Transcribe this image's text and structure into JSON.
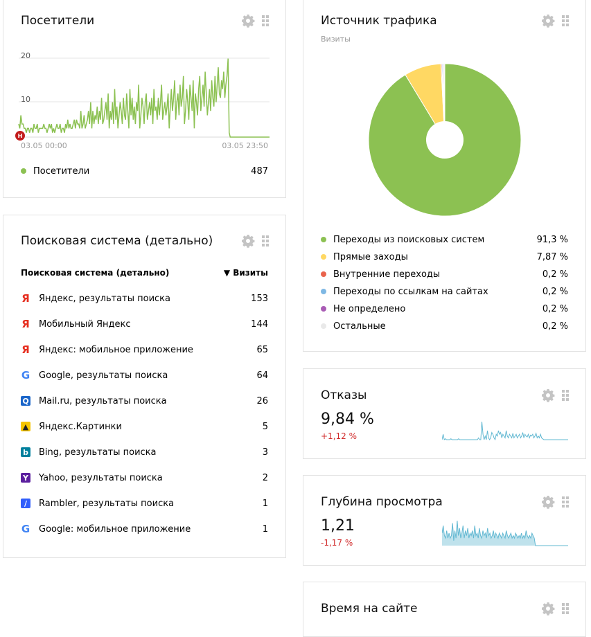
{
  "visitors": {
    "title": "Посетители",
    "y_ticks": [
      "20",
      "10"
    ],
    "x_start": "03.05 00:00",
    "x_end": "03.05 23:50",
    "marker": "Н",
    "legend_label": "Посетители",
    "legend_value": "487",
    "color": "#8cc152",
    "chart_data": {
      "type": "line",
      "ylim": [
        0,
        22
      ],
      "values": [
        3,
        2,
        5,
        3,
        3,
        2,
        2,
        1,
        2,
        2,
        1,
        2,
        2,
        1,
        3,
        2,
        2,
        3,
        1,
        2,
        2,
        2,
        2,
        3,
        2,
        2,
        1,
        2,
        3,
        2,
        3,
        1,
        2,
        1,
        2,
        3,
        2,
        2,
        3,
        1,
        2,
        2,
        1,
        3,
        2,
        4,
        2,
        3,
        2,
        2,
        3,
        4,
        2,
        4,
        3,
        3,
        2,
        6,
        2,
        3,
        5,
        2,
        3,
        4,
        6,
        3,
        8,
        2,
        6,
        3,
        5,
        4,
        7,
        3,
        6,
        4,
        9,
        3,
        4,
        6,
        8,
        4,
        10,
        2,
        6,
        4,
        8,
        3,
        11,
        4,
        7,
        2,
        5,
        8,
        6,
        3,
        9,
        5,
        4,
        10,
        6,
        2,
        11,
        5,
        9,
        4,
        7,
        3,
        8,
        6,
        12,
        2,
        5,
        9,
        7,
        3,
        8,
        10,
        4,
        6,
        8,
        5,
        9,
        3,
        11,
        6,
        7,
        4,
        9,
        5,
        8,
        12,
        4,
        6,
        8,
        5,
        7,
        10,
        2,
        7,
        11,
        6,
        9,
        13,
        4,
        8,
        10,
        5,
        12,
        7,
        9,
        14,
        3,
        6,
        11,
        8,
        4,
        12,
        9,
        6,
        13,
        2,
        10,
        8,
        5,
        11,
        14,
        6,
        9,
        12,
        7,
        15,
        10,
        5,
        8,
        11,
        6,
        13,
        9,
        7,
        14,
        8,
        12,
        16,
        10,
        9,
        13,
        11,
        15,
        9,
        12,
        14,
        18,
        1,
        0,
        0,
        0,
        0,
        0,
        0,
        0,
        0,
        0,
        0,
        0,
        0,
        0,
        0,
        0,
        0,
        0,
        0,
        0,
        0,
        0,
        0,
        0,
        0,
        0,
        0,
        0,
        0,
        0,
        0,
        0,
        0,
        0,
        0,
        0,
        0,
        0
      ]
    }
  },
  "traffic": {
    "title": "Источник трафика",
    "subtitle": "Визиты",
    "items": [
      {
        "label": "Переходы из поисковых систем",
        "value": "91,3 %",
        "color": "#8cc152"
      },
      {
        "label": "Прямые заходы",
        "value": "7,87 %",
        "color": "#ffd863"
      },
      {
        "label": "Внутренние переходы",
        "value": "0,2 %",
        "color": "#e9634c"
      },
      {
        "label": "Переходы по ссылкам на сайтах",
        "value": "0,2 %",
        "color": "#7eb8e4"
      },
      {
        "label": "Не определено",
        "value": "0,2 %",
        "color": "#a95cb5"
      },
      {
        "label": "Остальные",
        "value": "0,2 %",
        "color": "#e9e9e9"
      }
    ],
    "chart_data": {
      "type": "pie",
      "categories": [
        "Переходы из поисковых систем",
        "Прямые заходы",
        "Внутренние переходы",
        "Переходы по ссылкам на сайтах",
        "Не определено",
        "Остальные"
      ],
      "values": [
        91.3,
        7.87,
        0.2,
        0.2,
        0.2,
        0.2
      ]
    }
  },
  "search": {
    "title": "Поисковая система (детально)",
    "col_name": "Поисковая система (детально)",
    "col_visits": "▼ Визиты",
    "rows": [
      {
        "label": "Яндекс, результаты поиска",
        "value": "153",
        "icon": "yandex-icon"
      },
      {
        "label": "Мобильный Яндекс",
        "value": "144",
        "icon": "yandex-icon"
      },
      {
        "label": "Яндекс: мобильное приложение",
        "value": "65",
        "icon": "yandex-icon"
      },
      {
        "label": "Google, результаты поиска",
        "value": "64",
        "icon": "google-icon"
      },
      {
        "label": "Mail.ru, результаты поиска",
        "value": "26",
        "icon": "mailru-icon"
      },
      {
        "label": "Яндекс.Картинки",
        "value": "5",
        "icon": "yandex-images-icon"
      },
      {
        "label": "Bing, результаты поиска",
        "value": "3",
        "icon": "bing-icon"
      },
      {
        "label": "Yahoo, результаты поиска",
        "value": "2",
        "icon": "yahoo-icon"
      },
      {
        "label": "Rambler, результаты поиска",
        "value": "1",
        "icon": "rambler-icon"
      },
      {
        "label": "Google: мобильное приложение",
        "value": "1",
        "icon": "google-icon"
      }
    ]
  },
  "bounces": {
    "title": "Отказы",
    "value": "9,84 %",
    "delta": "+1,12 %",
    "color": "#62b8d2",
    "chart_data": {
      "type": "line",
      "ylim": [
        0,
        1
      ],
      "values": [
        0,
        0.3,
        0,
        0.05,
        0,
        0,
        0,
        0,
        0.05,
        0,
        0,
        0,
        0,
        0,
        0,
        0.05,
        0,
        0,
        0,
        0,
        0,
        0,
        0,
        0,
        0,
        0,
        0,
        0,
        0,
        0,
        0,
        0,
        0,
        0.1,
        0,
        0,
        1,
        0.3,
        0,
        0.2,
        0,
        0.5,
        0.1,
        0,
        0.1,
        0.4,
        0.3,
        0.1,
        0,
        0.3,
        0.2,
        0.5,
        0.3,
        0.4,
        0.1,
        0.3,
        0.2,
        0.1,
        0.5,
        0.2,
        0.1,
        0.3,
        0.2,
        0.1,
        0.35,
        0.1,
        0.2,
        0.3,
        0.1,
        0.2,
        0.3,
        0.1,
        0.2,
        0.4,
        0.1,
        0.3,
        0.2,
        0.15,
        0.3,
        0.1,
        0.25,
        0.2,
        0.3,
        0.1,
        0.2,
        0.35,
        0.1,
        0.2,
        0.1,
        0.3,
        0.1,
        0.05,
        0,
        0,
        0,
        0,
        0,
        0,
        0,
        0,
        0,
        0,
        0,
        0,
        0,
        0,
        0,
        0,
        0,
        0,
        0,
        0,
        0,
        0,
        0
      ]
    }
  },
  "depth": {
    "title": "Глубина просмотра",
    "value": "1,21",
    "delta": "-1,17 %",
    "color": "#62b8d2",
    "chart_data": {
      "type": "area",
      "ylim": [
        0,
        1
      ],
      "values": [
        0.5,
        0.8,
        0.4,
        0.3,
        0.6,
        0.3,
        0.5,
        0.3,
        0.4,
        0.9,
        0.2,
        0.6,
        0.3,
        1,
        0.4,
        0.7,
        0.3,
        0.5,
        0.8,
        0.3,
        0.6,
        0.4,
        0.7,
        0.3,
        0.5,
        0.4,
        0.6,
        0.3,
        0.8,
        0.4,
        0.5,
        0.3,
        0.7,
        0.4,
        0.3,
        0.6,
        0.4,
        0.5,
        0.3,
        0.7,
        0.4,
        0.5,
        0.3,
        0.4,
        0.6,
        0.3,
        0.5,
        0.4,
        0.3,
        0.5,
        0.4,
        0.3,
        0.5,
        0.4,
        0.3,
        0.6,
        0.4,
        0.3,
        0.4,
        0.5,
        0.3,
        0.4,
        0.3,
        0.5,
        0.4,
        0.3,
        0.4,
        0.3,
        0.5,
        0.3,
        0.4,
        0.3,
        0.6,
        0.4,
        0.3,
        0.4,
        0.3,
        0.5,
        0.4,
        0.3,
        0,
        0,
        0,
        0,
        0,
        0,
        0,
        0,
        0,
        0,
        0,
        0,
        0,
        0,
        0,
        0,
        0,
        0,
        0,
        0,
        0,
        0,
        0,
        0,
        0,
        0,
        0,
        0,
        0
      ]
    }
  },
  "time": {
    "title": "Время на сайте"
  }
}
